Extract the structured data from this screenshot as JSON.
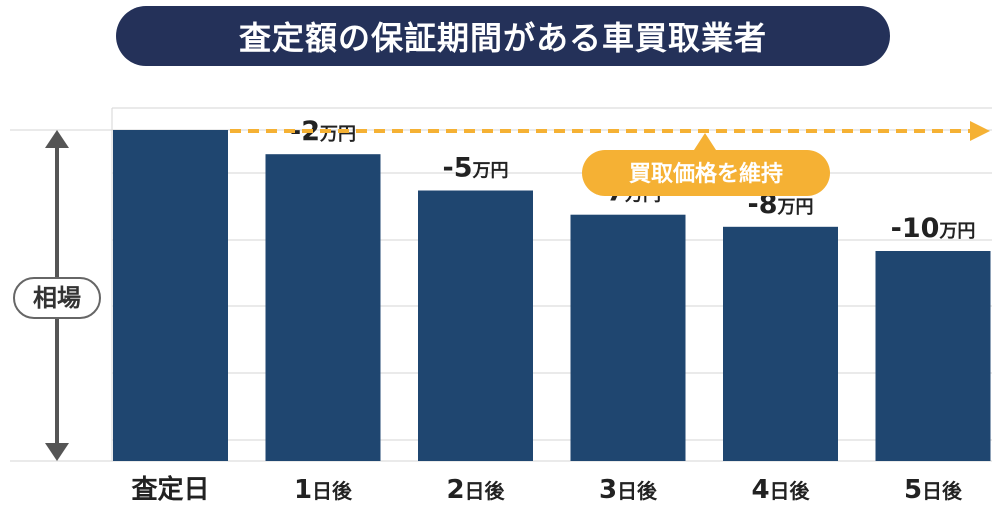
{
  "title": "査定額の保証期間がある車買取業者",
  "colors": {
    "bar": "#1f4670",
    "title_bg": "#243159",
    "accent": "#f5b134",
    "grid": "#d6d6d6",
    "arrow": "#555555"
  },
  "chart_data": {
    "type": "bar",
    "title": "査定額の保証期間がある車買取業者",
    "ylabel": "相場",
    "categories": [
      {
        "num": "",
        "suffix": "査定日"
      },
      {
        "num": "1",
        "suffix": "日後"
      },
      {
        "num": "2",
        "suffix": "日後"
      },
      {
        "num": "3",
        "suffix": "日後"
      },
      {
        "num": "4",
        "suffix": "日後"
      },
      {
        "num": "5",
        "suffix": "日後"
      }
    ],
    "values": [
      0,
      -2,
      -5,
      -7,
      -8,
      -10
    ],
    "labels": [
      null,
      {
        "num": "-2",
        "unit": "万円"
      },
      {
        "num": "-5",
        "unit": "万円"
      },
      {
        "num": "-7",
        "unit": "万円"
      },
      {
        "num": "-8",
        "unit": "万円"
      },
      {
        "num": "-10",
        "unit": "万円"
      }
    ],
    "annotation": "買取価格を維持",
    "grid": true,
    "y_ticks": false
  }
}
